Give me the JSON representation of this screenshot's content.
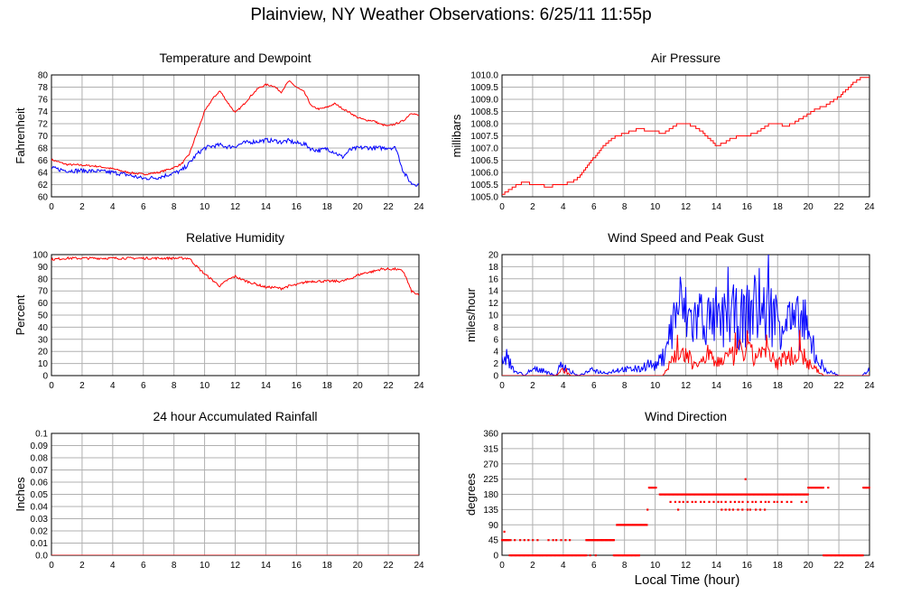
{
  "page": {
    "title": "Plainview, NY Weather Observations: 6/25/11 11:55p",
    "xlabel": "Local Time (hour)"
  },
  "colors": {
    "primary": "#ff0000",
    "secondary": "#0000ff",
    "grid": "#b0b0b0",
    "axis": "#000000"
  },
  "chart_data": [
    {
      "id": "temp",
      "type": "line",
      "title": "Temperature and Dewpoint",
      "xlabel": "",
      "ylabel": "Fahrenheit",
      "xlim": [
        0,
        24
      ],
      "ylim": [
        60,
        80
      ],
      "xticks": [
        0,
        2,
        4,
        6,
        8,
        10,
        12,
        14,
        16,
        18,
        20,
        22,
        24
      ],
      "yticks": [
        60,
        62,
        64,
        66,
        68,
        70,
        72,
        74,
        76,
        78,
        80
      ],
      "ytick_labels": [
        "60",
        "62",
        "64",
        "66",
        "68",
        "70",
        "72",
        "74",
        "76",
        "78",
        "80"
      ],
      "grid": true,
      "series": [
        {
          "color": "#ff0000",
          "noise": 0.15,
          "x": [
            0,
            1,
            2,
            3,
            4,
            5,
            6,
            7,
            8,
            8.5,
            9,
            9.5,
            10,
            10.5,
            11,
            11.5,
            12,
            12.5,
            13,
            13.5,
            14,
            14.5,
            15,
            15.5,
            16,
            16.5,
            17,
            17.5,
            18,
            18.5,
            19,
            19.5,
            20,
            20.5,
            21,
            21.5,
            22,
            22.5,
            23,
            23.5,
            24
          ],
          "y": [
            66.1,
            65.3,
            65.2,
            65.0,
            64.6,
            64.0,
            63.7,
            64.0,
            64.8,
            65.4,
            67.0,
            70.5,
            74.0,
            76.0,
            77.4,
            75.5,
            73.8,
            75.0,
            76.5,
            77.8,
            78.4,
            78.2,
            77.2,
            79.0,
            78.0,
            77.2,
            74.8,
            74.4,
            74.7,
            75.3,
            74.5,
            73.8,
            73.0,
            72.6,
            72.5,
            71.9,
            71.6,
            72.0,
            72.5,
            73.8,
            73.3
          ]
        },
        {
          "color": "#0000ff",
          "noise": 0.35,
          "x": [
            0,
            1,
            2,
            3,
            4,
            5,
            6,
            7,
            8,
            8.5,
            9,
            9.5,
            10,
            10.5,
            11,
            11.5,
            12,
            12.5,
            13,
            13.5,
            14,
            14.5,
            15,
            15.5,
            16,
            16.5,
            17,
            17.5,
            18,
            18.5,
            19,
            19.5,
            20,
            20.5,
            21,
            21.5,
            22,
            22.5,
            23,
            23.5,
            24
          ],
          "y": [
            64.7,
            64.3,
            64.3,
            64.2,
            64.0,
            63.6,
            63.0,
            63.2,
            63.9,
            64.3,
            65.5,
            67.0,
            68.0,
            68.3,
            68.5,
            68.2,
            68.3,
            68.8,
            69.0,
            69.1,
            69.3,
            69.2,
            69.0,
            69.2,
            68.8,
            68.7,
            67.8,
            67.6,
            67.9,
            67.3,
            66.5,
            67.7,
            68.0,
            68.1,
            68.0,
            68.0,
            68.1,
            68.0,
            64.0,
            62.2,
            62.0
          ]
        }
      ]
    },
    {
      "id": "pressure",
      "type": "line",
      "title": "Air Pressure",
      "xlabel": "",
      "ylabel": "millibars",
      "xlim": [
        0,
        24
      ],
      "ylim": [
        1005.0,
        1010.0
      ],
      "xticks": [
        0,
        2,
        4,
        6,
        8,
        10,
        12,
        14,
        16,
        18,
        20,
        22,
        24
      ],
      "yticks": [
        1005.0,
        1005.5,
        1006.0,
        1006.5,
        1007.0,
        1007.5,
        1008.0,
        1008.5,
        1009.0,
        1009.5,
        1010.0
      ],
      "ytick_labels": [
        "1005.0",
        "1005.5",
        "1006.0",
        "1006.5",
        "1007.0",
        "1007.5",
        "1008.0",
        "1008.5",
        "1009.0",
        "1009.5",
        "1010.0"
      ],
      "grid": true,
      "series": [
        {
          "color": "#ff0000",
          "noise": 0,
          "step": 0.1,
          "x": [
            0,
            0.5,
            1,
            1.5,
            2,
            2.5,
            3,
            3.5,
            4,
            4.5,
            5,
            5.5,
            6,
            6.5,
            7,
            7.5,
            8,
            8.5,
            9,
            9.5,
            10,
            10.5,
            11,
            11.5,
            12,
            12.5,
            13,
            13.5,
            14,
            14.5,
            15,
            15.5,
            16,
            16.5,
            17,
            17.5,
            18,
            18.5,
            19,
            19.5,
            20,
            20.5,
            21,
            21.5,
            22,
            22.5,
            23,
            23.5,
            24
          ],
          "y": [
            1005.1,
            1005.3,
            1005.5,
            1005.6,
            1005.5,
            1005.5,
            1005.4,
            1005.5,
            1005.5,
            1005.6,
            1005.8,
            1006.2,
            1006.6,
            1007.0,
            1007.3,
            1007.5,
            1007.6,
            1007.7,
            1007.8,
            1007.7,
            1007.7,
            1007.6,
            1007.8,
            1008.0,
            1008.0,
            1007.9,
            1007.7,
            1007.4,
            1007.1,
            1007.2,
            1007.4,
            1007.5,
            1007.5,
            1007.6,
            1007.8,
            1008.0,
            1008.0,
            1007.9,
            1008.0,
            1008.2,
            1008.4,
            1008.6,
            1008.7,
            1008.9,
            1009.1,
            1009.4,
            1009.7,
            1009.9,
            1009.9
          ]
        }
      ]
    },
    {
      "id": "humidity",
      "type": "line",
      "title": "Relative Humidity",
      "xlabel": "",
      "ylabel": "Percent",
      "xlim": [
        0,
        24
      ],
      "ylim": [
        0,
        100
      ],
      "xticks": [
        0,
        2,
        4,
        6,
        8,
        10,
        12,
        14,
        16,
        18,
        20,
        22,
        24
      ],
      "yticks": [
        0,
        10,
        20,
        30,
        40,
        50,
        60,
        70,
        80,
        90,
        100
      ],
      "ytick_labels": [
        "0",
        "10",
        "20",
        "30",
        "40",
        "50",
        "60",
        "70",
        "80",
        "90",
        "100"
      ],
      "grid": true,
      "series": [
        {
          "color": "#ff0000",
          "noise": 1.0,
          "x": [
            0,
            1,
            2,
            3,
            4,
            5,
            6,
            7,
            8,
            9,
            9.5,
            10,
            10.5,
            11,
            11.5,
            12,
            12.5,
            13,
            13.5,
            14,
            14.5,
            15,
            15.5,
            16,
            16.5,
            17,
            17.5,
            18,
            18.5,
            19,
            19.5,
            20,
            20.5,
            21,
            21.5,
            22,
            22.5,
            23,
            23.5,
            24
          ],
          "y": [
            96,
            97,
            97,
            97,
            97,
            97,
            97,
            97,
            97,
            97,
            90,
            84,
            79,
            74,
            79,
            82,
            79,
            77,
            75,
            73,
            73,
            72,
            74,
            75,
            77,
            78,
            78,
            78,
            78,
            78,
            80,
            83,
            85,
            86,
            88,
            88,
            88,
            86,
            70,
            66
          ]
        }
      ]
    },
    {
      "id": "wind",
      "type": "line",
      "title": "Wind Speed and Peak Gust",
      "xlabel": "",
      "ylabel": "miles/hour",
      "xlim": [
        0,
        24
      ],
      "ylim": [
        0,
        20
      ],
      "xticks": [
        0,
        2,
        4,
        6,
        8,
        10,
        12,
        14,
        16,
        18,
        20,
        22,
        24
      ],
      "yticks": [
        0,
        2,
        4,
        6,
        8,
        10,
        12,
        14,
        16,
        18,
        20
      ],
      "ytick_labels": [
        "0",
        "2",
        "4",
        "6",
        "8",
        "10",
        "12",
        "14",
        "16",
        "18",
        "20"
      ],
      "grid": true,
      "series": [
        {
          "color": "#0000ff",
          "noise": 0,
          "spiky": true,
          "x": [
            0,
            0.5,
            1,
            1.5,
            2,
            2.5,
            3,
            3.5,
            4,
            4.5,
            5,
            5.5,
            6,
            6.5,
            7,
            7.5,
            8,
            8.5,
            9,
            9.5,
            10,
            10.5,
            11,
            11.5,
            12,
            12.5,
            13,
            13.5,
            14,
            14.5,
            15,
            15.5,
            16,
            16.5,
            17,
            17.5,
            18,
            18.5,
            19,
            19.5,
            20,
            20.5,
            21,
            21.5,
            22,
            22.5,
            23,
            23.5,
            24
          ],
          "y": [
            3,
            2,
            0.5,
            0,
            1,
            1,
            0.5,
            0,
            2,
            0.5,
            0,
            0.5,
            1,
            0.5,
            0.5,
            1,
            1,
            1,
            1,
            2,
            1.5,
            3,
            7,
            12,
            10,
            9,
            10,
            9,
            8,
            9,
            10,
            9,
            10,
            11,
            10,
            11,
            9,
            10,
            8,
            9,
            6,
            3,
            1,
            0.5,
            0,
            0,
            0,
            0,
            1
          ]
        },
        {
          "color": "#ff0000",
          "noise": 0,
          "spiky": true,
          "x": [
            0,
            0.5,
            1,
            1.5,
            2,
            2.5,
            3,
            3.5,
            4,
            4.5,
            5,
            5.5,
            6,
            6.5,
            7,
            7.5,
            8,
            8.5,
            9,
            9.5,
            10,
            10.5,
            11,
            11.5,
            12,
            12.5,
            13,
            13.5,
            14,
            14.5,
            15,
            15.5,
            16,
            16.5,
            17,
            17.5,
            18,
            18.5,
            19,
            19.5,
            20,
            20.5,
            21,
            21.5,
            22,
            22.5,
            23,
            23.5,
            24
          ],
          "y": [
            0,
            0,
            0,
            0,
            0,
            0,
            0,
            0,
            1,
            0,
            0,
            0,
            0,
            0,
            0,
            0,
            0,
            0,
            0,
            0,
            0,
            0,
            2,
            4,
            3,
            2,
            2,
            3,
            2,
            3,
            3,
            4,
            4,
            3,
            4,
            3,
            2,
            3,
            3,
            4,
            2,
            1,
            0,
            0,
            0,
            0,
            0,
            0,
            0
          ]
        }
      ]
    },
    {
      "id": "rain",
      "type": "line",
      "title": "24 hour Accumulated Rainfall",
      "xlabel": "",
      "ylabel": "Inches",
      "xlim": [
        0,
        24
      ],
      "ylim": [
        0,
        0.1
      ],
      "xticks": [
        0,
        2,
        4,
        6,
        8,
        10,
        12,
        14,
        16,
        18,
        20,
        22,
        24
      ],
      "yticks": [
        0,
        0.01,
        0.02,
        0.03,
        0.04,
        0.05,
        0.06,
        0.07,
        0.08,
        0.09,
        0.1
      ],
      "ytick_labels": [
        "0.0",
        "0.01",
        "0.02",
        "0.03",
        "0.04",
        "0.05",
        "0.06",
        "0.07",
        "0.08",
        "0.09",
        "0.1"
      ],
      "grid": true,
      "series": [
        {
          "color": "#ff0000",
          "noise": 0,
          "x": [
            0,
            24
          ],
          "y": [
            0,
            0
          ]
        }
      ]
    },
    {
      "id": "direction",
      "type": "scatter",
      "title": "Wind Direction",
      "xlabel": "",
      "ylabel": "degrees",
      "xlim": [
        0,
        24
      ],
      "ylim": [
        0,
        360
      ],
      "xticks": [
        0,
        2,
        4,
        6,
        8,
        10,
        12,
        14,
        16,
        18,
        20,
        22,
        24
      ],
      "yticks": [
        0,
        45,
        90,
        135,
        180,
        225,
        270,
        315,
        360
      ],
      "ytick_labels": [
        "0",
        "45",
        "90",
        "135",
        "180",
        "225",
        "270",
        "315",
        "360"
      ],
      "grid": true,
      "series": [
        {
          "color": "#ff0000",
          "segments": [
            {
              "from": 0.0,
              "to": 0.5,
              "value": 45
            },
            {
              "from": 0.15,
              "to": 0.15,
              "value": 70
            },
            {
              "from": 0.5,
              "to": 2.5,
              "value": 0
            },
            {
              "from": 0.6,
              "to": 2.3,
              "value": 45,
              "sparse": true
            },
            {
              "from": 2.5,
              "to": 5.5,
              "value": 0
            },
            {
              "from": 3.0,
              "to": 4.5,
              "value": 45,
              "sparse": true
            },
            {
              "from": 5.5,
              "to": 7.3,
              "value": 45
            },
            {
              "from": 5.8,
              "to": 6.3,
              "value": 0,
              "sparse": true
            },
            {
              "from": 7.3,
              "to": 9.0,
              "value": 0
            },
            {
              "from": 7.5,
              "to": 9.5,
              "value": 90
            },
            {
              "from": 9.5,
              "to": 9.5,
              "value": 135
            },
            {
              "from": 9.6,
              "to": 10.1,
              "value": 200
            },
            {
              "from": 10.3,
              "to": 20.0,
              "value": 180
            },
            {
              "from": 11.0,
              "to": 19.0,
              "value": 158,
              "sparse": true
            },
            {
              "from": 11.5,
              "to": 11.5,
              "value": 135
            },
            {
              "from": 14.3,
              "to": 17.2,
              "value": 135,
              "sparse": true
            },
            {
              "from": 15.9,
              "to": 15.9,
              "value": 225
            },
            {
              "from": 19.6,
              "to": 20.1,
              "value": 158,
              "sparse": true
            },
            {
              "from": 20.0,
              "to": 21.0,
              "value": 200
            },
            {
              "from": 21.3,
              "to": 21.3,
              "value": 200
            },
            {
              "from": 21.0,
              "to": 23.6,
              "value": 0
            },
            {
              "from": 23.6,
              "to": 24.0,
              "value": 200
            }
          ]
        }
      ]
    }
  ]
}
